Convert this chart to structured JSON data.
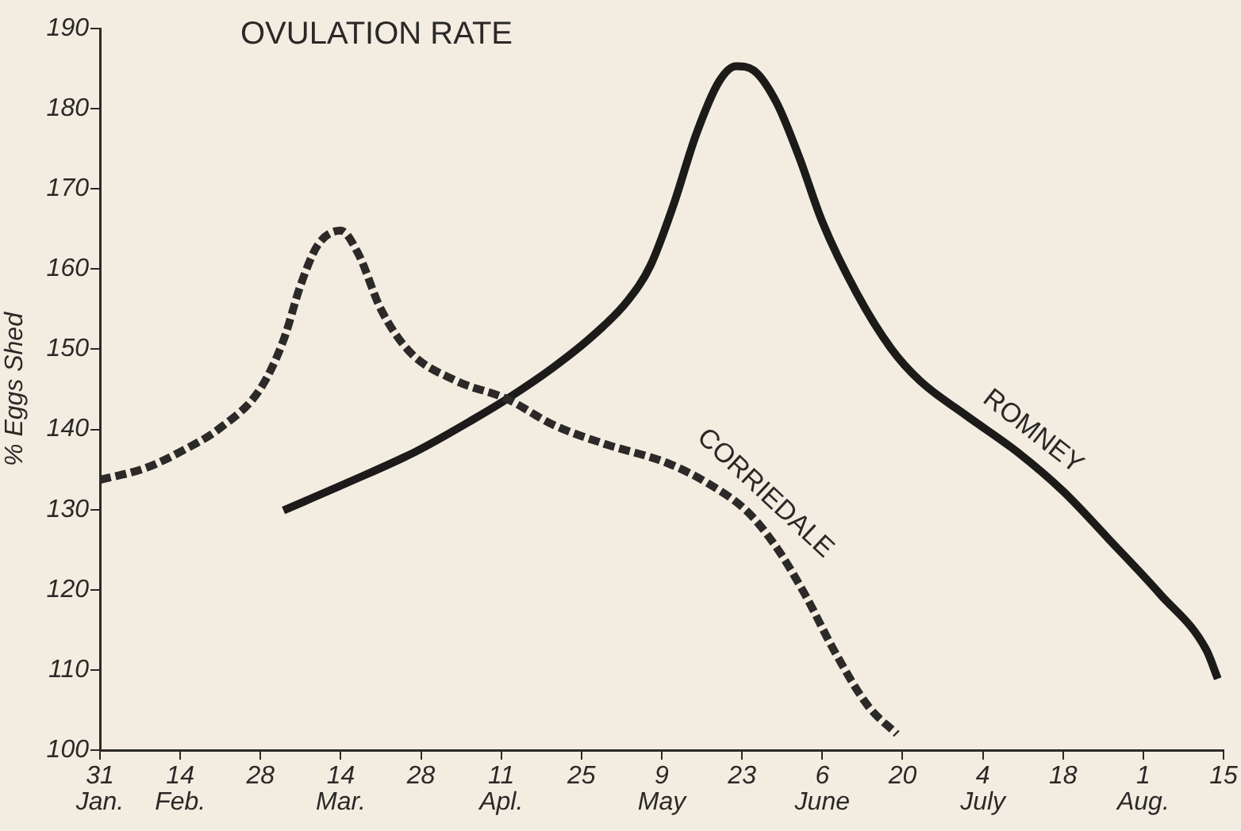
{
  "chart_data": {
    "type": "line",
    "title": "OVULATION RATE",
    "ylabel": "% Eggs Shed",
    "xlim": [
      "--01-31",
      "--08-15"
    ],
    "ylim": [
      100,
      190
    ],
    "xticks": [
      {
        "value": "--01-31",
        "label": "31 Jan."
      },
      {
        "value": "--02-14",
        "label": "14 Feb."
      },
      {
        "value": "--02-28",
        "label": "28"
      },
      {
        "value": "--03-14",
        "label": "14 Mar."
      },
      {
        "value": "--03-28",
        "label": "28"
      },
      {
        "value": "--04-11",
        "label": "11 Apl."
      },
      {
        "value": "--04-25",
        "label": "25"
      },
      {
        "value": "--05-09",
        "label": "9 May"
      },
      {
        "value": "--05-23",
        "label": "23"
      },
      {
        "value": "--06-06",
        "label": "6 June"
      },
      {
        "value": "--06-20",
        "label": "20"
      },
      {
        "value": "--07-04",
        "label": "4 July"
      },
      {
        "value": "--07-18",
        "label": "18"
      },
      {
        "value": "--08-01",
        "label": "1 Aug."
      },
      {
        "value": "--08-15",
        "label": "15"
      }
    ],
    "yticks": [
      100,
      110,
      120,
      130,
      140,
      150,
      160,
      170,
      180,
      190
    ],
    "grid": false,
    "legend": false,
    "marker": "none",
    "series": [
      {
        "name": "CORRIEDALE",
        "color": "#2b2a28",
        "line_style": "dashed",
        "x": [
          "--01-31",
          "--02-08",
          "--02-14",
          "--02-21",
          "--02-28",
          "--03-04",
          "--03-07",
          "--03-10",
          "--03-14",
          "--03-17",
          "--03-21",
          "--03-26",
          "--04-03",
          "--04-12",
          "--04-20",
          "--04-29",
          "--05-10",
          "--05-17",
          "--05-24",
          "--05-29",
          "--06-03",
          "--06-08",
          "--06-14",
          "--06-19"
        ],
        "values": [
          133.7,
          135.2,
          137.2,
          140.2,
          145.1,
          151.1,
          158,
          163,
          164.8,
          162,
          155,
          149.7,
          146.1,
          143.8,
          140.6,
          138.2,
          135.8,
          133.3,
          129.7,
          125.3,
          119.4,
          112.5,
          105.5,
          102
        ]
      },
      {
        "name": "ROMNEY",
        "color": "#1c1b1a",
        "line_style": "solid",
        "x": [
          "--03-04",
          "--03-15",
          "--03-27",
          "--04-06",
          "--04-12",
          "--04-20",
          "--04-27",
          "--05-03",
          "--05-07",
          "--05-11",
          "--05-15",
          "--05-19",
          "--05-22",
          "--05-25",
          "--05-29",
          "--06-02",
          "--06-06",
          "--06-12",
          "--06-18",
          "--06-23",
          "--07-01",
          "--07-10",
          "--07-18",
          "--07-26",
          "--08-04",
          "--08-12",
          "--08-14"
        ],
        "values": [
          129.9,
          133.3,
          137.2,
          141.2,
          143.8,
          147.7,
          151.7,
          156,
          160.4,
          167.9,
          176.8,
          183.4,
          185.3,
          184.8,
          180.8,
          173.9,
          165.9,
          157,
          150.1,
          146.1,
          141.8,
          137.2,
          132.3,
          126.3,
          119.4,
          112.5,
          108.9
        ]
      }
    ]
  }
}
